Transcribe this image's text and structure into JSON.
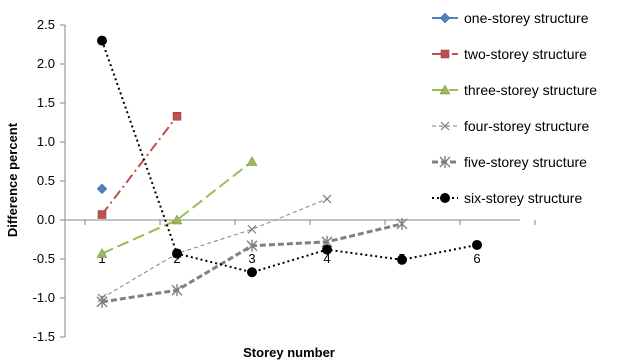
{
  "chart_data": {
    "type": "line",
    "xlabel": "Storey number",
    "ylabel": "Difference percent",
    "ylim": [
      -1.5,
      2.5
    ],
    "yticks": [
      "2.5",
      "2.0",
      "1.5",
      "1.0",
      "0.5",
      "0.0",
      "-0.5",
      "-1.0",
      "-1.5"
    ],
    "xtick_labels": [
      "1",
      "2",
      "3",
      "4",
      "5",
      "6"
    ],
    "grid": false,
    "legend_position": "right",
    "series": [
      {
        "name": "one-storey structure",
        "color": "#4f81bd",
        "marker": "diamond",
        "dash": "",
        "width": 2,
        "x": [
          1
        ],
        "y": [
          0.4
        ]
      },
      {
        "name": "two-storey structure",
        "color": "#c0504d",
        "marker": "square",
        "dash": "10,4,2,4",
        "width": 2,
        "x": [
          1,
          2
        ],
        "y": [
          0.07,
          1.33
        ]
      },
      {
        "name": "three-storey structure",
        "color": "#9bbb59",
        "marker": "triangle",
        "dash": "12,5",
        "width": 2,
        "x": [
          1,
          2,
          3
        ],
        "y": [
          -0.43,
          0.0,
          0.75
        ]
      },
      {
        "name": "four-storey structure",
        "color": "#808080",
        "marker": "x",
        "dash": "4,3",
        "width": 1,
        "x": [
          1,
          2,
          3,
          4
        ],
        "y": [
          -1.0,
          -0.43,
          -0.12,
          0.27
        ]
      },
      {
        "name": "five-storey structure",
        "color": "#808080",
        "marker": "star",
        "dash": "6,3",
        "width": 3,
        "x": [
          1,
          2,
          3,
          4,
          5
        ],
        "y": [
          -1.05,
          -0.9,
          -0.33,
          -0.28,
          -0.05
        ]
      },
      {
        "name": "six-storey structure",
        "color": "#000000",
        "marker": "circle",
        "dash": "2,3",
        "width": 2,
        "x": [
          1,
          2,
          3,
          4,
          5,
          6
        ],
        "y": [
          2.3,
          -0.43,
          -0.67,
          -0.38,
          -0.51,
          -0.32
        ]
      }
    ]
  }
}
